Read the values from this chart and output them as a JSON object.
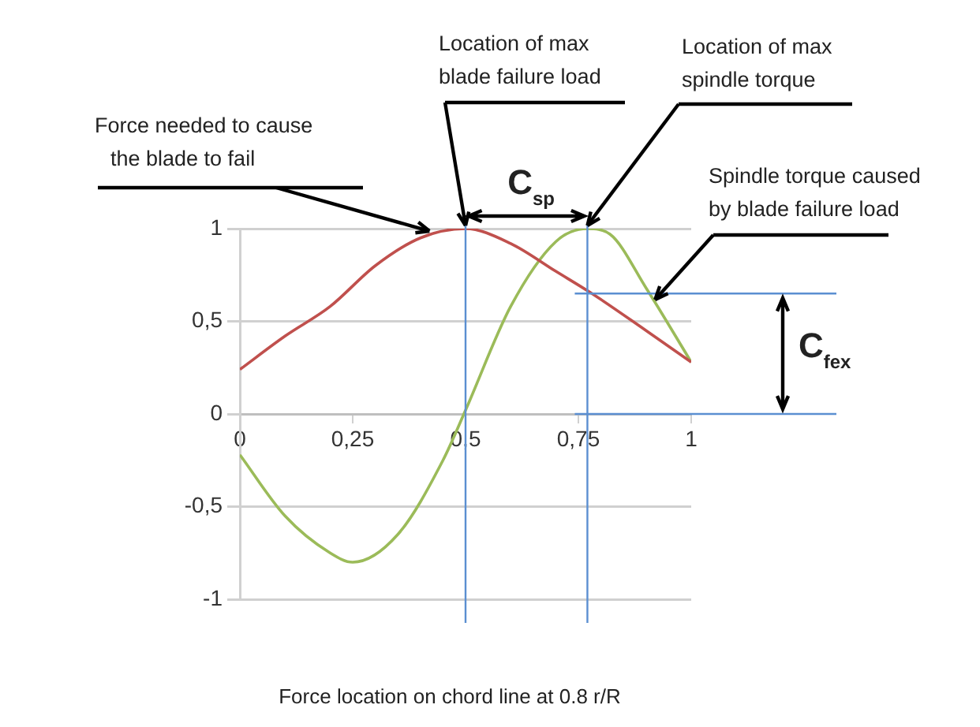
{
  "chart_data": {
    "type": "line",
    "xlabel": "Force location on chord line at 0.8 r/R",
    "series": [
      {
        "color": "#c0504d",
        "x": [
          0,
          0.1,
          0.2,
          0.3,
          0.4,
          0.5,
          0.6,
          0.7,
          0.78,
          0.9,
          1
        ],
        "values": [
          0.24,
          0.42,
          0.58,
          0.8,
          0.95,
          1.0,
          0.92,
          0.77,
          0.65,
          0.45,
          0.28
        ]
      },
      {
        "color": "#9bbb59",
        "x": [
          0,
          0.1,
          0.2,
          0.25,
          0.35,
          0.45,
          0.5,
          0.6,
          0.7,
          0.77,
          0.82,
          0.9,
          1
        ],
        "values": [
          -0.22,
          -0.55,
          -0.75,
          -0.8,
          -0.65,
          -0.25,
          0.02,
          0.58,
          0.93,
          1.0,
          0.97,
          0.68,
          0.28
        ]
      }
    ],
    "xlim": [
      0,
      1
    ],
    "xticks": [
      0,
      {
        "value": 0.25,
        "label": "0,25"
      },
      {
        "value": 0.5,
        "label": "0,5"
      },
      {
        "value": 0.75,
        "label": "0,75"
      },
      1
    ],
    "ylim": [
      -1,
      1
    ],
    "yticks": [
      -1,
      {
        "value": -0.5,
        "label": "-0,5"
      },
      0,
      {
        "value": 0.5,
        "label": "0,5"
      },
      1
    ],
    "grid": "y",
    "legend": false,
    "marker": "none",
    "line_style": "solid",
    "ref_lines": [
      {
        "axis": "x",
        "value": 0.5,
        "color": "#5b8fd1"
      },
      {
        "axis": "x",
        "value": 0.77,
        "color": "#5b8fd1"
      },
      {
        "axis": "y",
        "value": 0.65,
        "color": "#5b8fd1"
      },
      {
        "axis": "y",
        "value": 0,
        "color": "#5b8fd1"
      }
    ],
    "annotations": [
      {
        "text": "Force needed to cause the blade to fail",
        "x": 0.42,
        "y": 0.97
      },
      {
        "text": "Location of max blade failure load",
        "x": 0.5,
        "y": 1
      },
      {
        "text": "Location of max spindle torque",
        "x": 0.77,
        "y": 1
      },
      {
        "text": "Spindle torque caused by blade failure load",
        "x": 0.92,
        "y": 0.6
      },
      "C$_{sp}$",
      "C$_{fex}$"
    ]
  }
}
